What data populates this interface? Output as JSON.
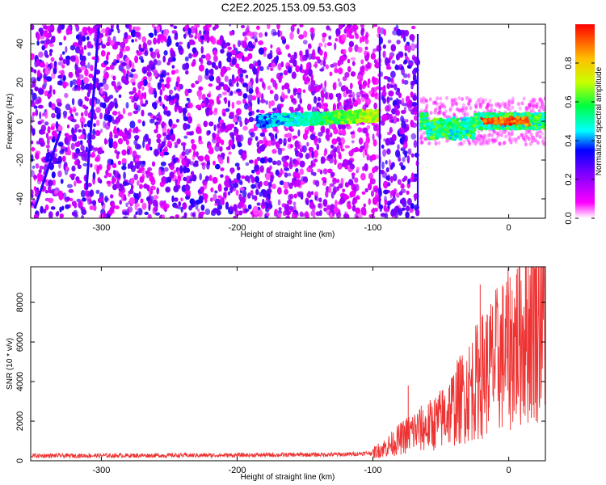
{
  "title": "C2E2.2025.153.09.53.G03",
  "chart_data": [
    {
      "type": "heatmap",
      "xlabel": "Height of straight line (km)",
      "ylabel": "Frequency (Hz)",
      "xlim": [
        -352,
        27
      ],
      "ylim": [
        -50,
        50
      ],
      "xticks": [
        -300,
        -200,
        -100,
        0
      ],
      "yticks": [
        -40,
        -20,
        0,
        20,
        40
      ],
      "colorbar": {
        "label": "Normalized spectral amplitude",
        "range": [
          0,
          1
        ],
        "ticks": [
          "0.0",
          "0.2",
          "0.4",
          "0.6",
          "0.8"
        ],
        "colors": [
          "#ffffff",
          "#ff00ff",
          "#6a00ff",
          "#0000ff",
          "#00ffff",
          "#00ff40",
          "#c8ff00",
          "#ffc000",
          "#ff0000"
        ]
      },
      "features": {
        "noise_region_x": [
          -352,
          -67
        ],
        "signal_band_x": [
          -185,
          -95
        ],
        "signal_band_freq": [
          0,
          8
        ],
        "strong_band_x": [
          -65,
          27
        ],
        "strong_band_freq": [
          -5,
          5
        ],
        "peak_band_x": [
          -20,
          15
        ],
        "vertical_lines_x": [
          -95,
          -67
        ]
      }
    },
    {
      "type": "line",
      "xlabel": "Height of straight line (km)",
      "ylabel": "SNR (10 * v/v)",
      "xlim": [
        -352,
        27
      ],
      "ylim": [
        0,
        9800
      ],
      "xticks": [
        -300,
        -200,
        -100,
        0
      ],
      "yticks": [
        0,
        2000,
        4000,
        6000,
        8000
      ],
      "color": "#ee3333",
      "trend": [
        [
          -352,
          250
        ],
        [
          -300,
          260
        ],
        [
          -200,
          280
        ],
        [
          -120,
          320
        ],
        [
          -100,
          400
        ],
        [
          -90,
          700
        ],
        [
          -80,
          1100
        ],
        [
          -70,
          1500
        ],
        [
          -60,
          1700
        ],
        [
          -50,
          2100
        ],
        [
          -40,
          2800
        ],
        [
          -30,
          3500
        ],
        [
          -20,
          4300
        ],
        [
          -10,
          5000
        ],
        [
          0,
          5600
        ],
        [
          10,
          6400
        ],
        [
          20,
          7200
        ],
        [
          27,
          7600
        ]
      ],
      "notable_points": [
        {
          "x": -74,
          "y": 3800
        },
        {
          "x": -21,
          "y": 8900
        },
        {
          "x": 22,
          "y": 9700
        }
      ]
    }
  ]
}
